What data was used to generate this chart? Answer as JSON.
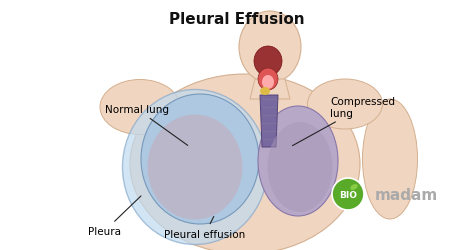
{
  "title": "Pleural Effusion",
  "title_fontsize": 11,
  "title_fontweight": "bold",
  "bg_color": "#ffffff",
  "labels": [
    "Normal lung",
    "Compressed\nlung",
    "Pleura",
    "Pleural effusion"
  ],
  "label_fontsize": 7.5,
  "bio_circle_color": "#5aaa2a",
  "body_color": "#f0d5c0",
  "body_edge_color": "#d4b090",
  "lung_left_color": "#adc8e0",
  "lung_left_inner_color": "#c8a8b8",
  "lung_right_color": "#b8a8c8",
  "lung_right_inner_color": "#a898b8",
  "effusion_color": "#90b8d8",
  "trachea_color": "#7868a0",
  "mouth_dark_color": "#993333",
  "mouth_light_color": "#dd5555",
  "arrow_color": "#222222"
}
